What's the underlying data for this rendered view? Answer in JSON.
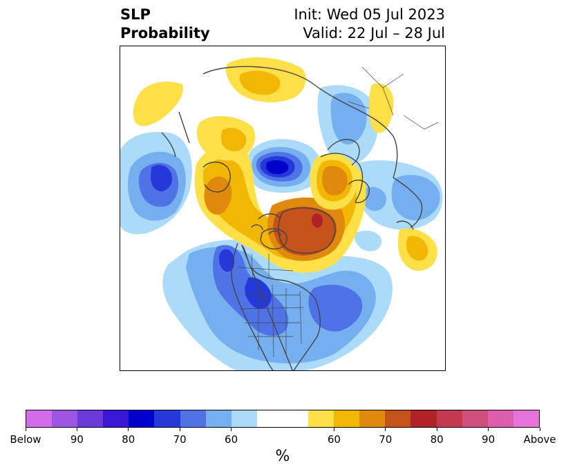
{
  "title": {
    "left_line1": "SLP",
    "left_line2": "Probability",
    "right_line1": "Init: Wed 05 Jul 2023",
    "right_line2": "Valid: 22 Jul – 28 Jul"
  },
  "colorbar": {
    "unit": "%",
    "colors": [
      "#d36ce8",
      "#9d55e2",
      "#6e39db",
      "#3a16d5",
      "#0000cc",
      "#2539db",
      "#4f73e6",
      "#76aff0",
      "#acdbf9",
      "#ffffff",
      "#ffffff",
      "#fde047",
      "#f2b705",
      "#df8a0c",
      "#c5521a",
      "#b12226",
      "#c3394f",
      "#cf4e7e",
      "#dc5eac",
      "#e674da"
    ],
    "tick_labels": [
      "Below",
      "90",
      "80",
      "70",
      "60",
      "60",
      "70",
      "80",
      "90",
      "Above"
    ]
  },
  "colors": {
    "below_90": "#3a16d5",
    "below_80": "#0000cc",
    "below_70": "#4f73e6",
    "below_60": "#76aff0",
    "below_50": "#acdbf9",
    "above_50": "#fde047",
    "above_60": "#f2b705",
    "above_70": "#df8a0c",
    "above_80": "#c5521a",
    "above_90": "#b12226",
    "coastline": "#444444"
  }
}
